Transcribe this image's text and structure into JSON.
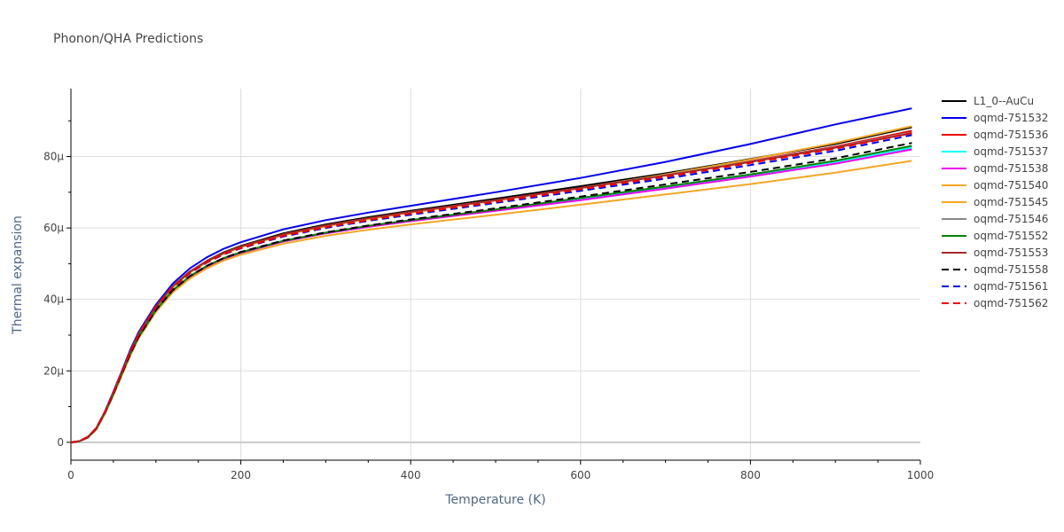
{
  "chart_data": {
    "type": "line",
    "title": "Phonon/QHA Predictions",
    "xlabel": "Temperature (K)",
    "ylabel": "Thermal expansion",
    "xlim": [
      0,
      1000
    ],
    "ylim": [
      -5e-06,
      9.9e-05
    ],
    "xticks": [
      0,
      200,
      400,
      600,
      800,
      1000
    ],
    "xtick_labels": [
      "0",
      "200",
      "400",
      "600",
      "800",
      "1000"
    ],
    "yticks": [
      0,
      2e-05,
      4e-05,
      6e-05,
      8e-05
    ],
    "ytick_labels": [
      "0",
      "20μ",
      "40μ",
      "60μ",
      "80μ"
    ],
    "grid": true,
    "legend_position": "right",
    "x": [
      0,
      10,
      20,
      30,
      40,
      50,
      60,
      70,
      80,
      100,
      120,
      140,
      160,
      180,
      200,
      250,
      300,
      350,
      400,
      500,
      600,
      700,
      800,
      900,
      990
    ],
    "series": [
      {
        "name": "L1_0--AuCu",
        "color": "#000000",
        "dash": "solid",
        "values": [
          0,
          3e-07,
          1.5e-06,
          4e-06,
          8.5e-06,
          1.4e-05,
          1.98e-05,
          2.55e-05,
          3.05e-05,
          3.8e-05,
          4.38e-05,
          4.78e-05,
          5.08e-05,
          5.32e-05,
          5.5e-05,
          5.85e-05,
          6.1e-05,
          6.3e-05,
          6.48e-05,
          6.82e-05,
          7.17e-05,
          7.53e-05,
          7.93e-05,
          8.35e-05,
          8.82e-05
        ]
      },
      {
        "name": "oqmd-751532",
        "color": "#0000ee",
        "dash": "solid",
        "values": [
          0,
          3e-07,
          1.5e-06,
          4e-06,
          8.6e-06,
          1.42e-05,
          2e-05,
          2.6e-05,
          3.1e-05,
          3.85e-05,
          4.45e-05,
          4.87e-05,
          5.18e-05,
          5.42e-05,
          5.6e-05,
          5.96e-05,
          6.22e-05,
          6.43e-05,
          6.62e-05,
          7e-05,
          7.4e-05,
          7.85e-05,
          8.35e-05,
          8.9e-05,
          9.35e-05
        ]
      },
      {
        "name": "oqmd-751536",
        "color": "#ee0000",
        "dash": "solid",
        "values": [
          0,
          3e-07,
          1.5e-06,
          4e-06,
          8.5e-06,
          1.4e-05,
          1.98e-05,
          2.55e-05,
          3.05e-05,
          3.8e-05,
          4.37e-05,
          4.77e-05,
          5.07e-05,
          5.3e-05,
          5.48e-05,
          5.82e-05,
          6.07e-05,
          6.27e-05,
          6.45e-05,
          6.78e-05,
          7.12e-05,
          7.48e-05,
          7.87e-05,
          8.28e-05,
          8.72e-05
        ]
      },
      {
        "name": "oqmd-751537",
        "color": "#00ffff",
        "dash": "solid",
        "values": [
          0,
          3e-07,
          1.4e-06,
          3.8e-06,
          8.2e-06,
          1.35e-05,
          1.92e-05,
          2.48e-05,
          2.96e-05,
          3.7e-05,
          4.25e-05,
          4.63e-05,
          4.92e-05,
          5.14e-05,
          5.3e-05,
          5.62e-05,
          5.85e-05,
          6.04e-05,
          6.2e-05,
          6.5e-05,
          6.82e-05,
          7.14e-05,
          7.48e-05,
          7.85e-05,
          8.25e-05
        ]
      },
      {
        "name": "oqmd-751538",
        "color": "#ee00ee",
        "dash": "solid",
        "values": [
          0,
          3e-07,
          1.4e-06,
          3.8e-06,
          8.2e-06,
          1.35e-05,
          1.92e-05,
          2.48e-05,
          2.96e-05,
          3.7e-05,
          4.25e-05,
          4.63e-05,
          4.92e-05,
          5.14e-05,
          5.3e-05,
          5.62e-05,
          5.85e-05,
          6.03e-05,
          6.19e-05,
          6.48e-05,
          6.78e-05,
          7.1e-05,
          7.44e-05,
          7.8e-05,
          8.2e-05
        ]
      },
      {
        "name": "oqmd-751540",
        "color": "#f5a623",
        "dash": "solid",
        "values": [
          0,
          3e-07,
          1.4e-06,
          3.8e-06,
          8.4e-06,
          1.38e-05,
          1.96e-05,
          2.53e-05,
          3.03e-05,
          3.78e-05,
          4.35e-05,
          4.75e-05,
          5.05e-05,
          5.28e-05,
          5.46e-05,
          5.8e-05,
          6.05e-05,
          6.25e-05,
          6.43e-05,
          6.77e-05,
          7.12e-05,
          7.5e-05,
          7.92e-05,
          8.38e-05,
          8.85e-05
        ]
      },
      {
        "name": "oqmd-751545",
        "color": "#f5a623",
        "dash": "solid",
        "values": [
          0,
          3e-07,
          1.3e-06,
          3.6e-06,
          8e-06,
          1.32e-05,
          1.88e-05,
          2.43e-05,
          2.92e-05,
          3.65e-05,
          4.2e-05,
          4.58e-05,
          4.87e-05,
          5.09e-05,
          5.25e-05,
          5.56e-05,
          5.78e-05,
          5.95e-05,
          6.1e-05,
          6.37e-05,
          6.65e-05,
          6.94e-05,
          7.23e-05,
          7.55e-05,
          7.88e-05
        ]
      },
      {
        "name": "oqmd-751546",
        "color": "#888888",
        "dash": "solid",
        "values": [
          0,
          3e-07,
          1.5e-06,
          4e-06,
          8.5e-06,
          1.4e-05,
          1.98e-05,
          2.55e-05,
          3.05e-05,
          3.8e-05,
          4.37e-05,
          4.77e-05,
          5.07e-05,
          5.3e-05,
          5.48e-05,
          5.82e-05,
          6.07e-05,
          6.27e-05,
          6.45e-05,
          6.78e-05,
          7.12e-05,
          7.48e-05,
          7.86e-05,
          8.26e-05,
          8.68e-05
        ]
      },
      {
        "name": "oqmd-751552",
        "color": "#008000",
        "dash": "solid",
        "values": [
          0,
          3e-07,
          1.4e-06,
          3.8e-06,
          8.2e-06,
          1.35e-05,
          1.92e-05,
          2.48e-05,
          2.96e-05,
          3.7e-05,
          4.26e-05,
          4.65e-05,
          4.94e-05,
          5.16e-05,
          5.32e-05,
          5.64e-05,
          5.87e-05,
          6.06e-05,
          6.22e-05,
          6.52e-05,
          6.84e-05,
          7.16e-05,
          7.5e-05,
          7.88e-05,
          8.3e-05
        ]
      },
      {
        "name": "oqmd-751553",
        "color": "#a52a2a",
        "dash": "solid",
        "values": [
          0,
          3e-07,
          1.5e-06,
          4e-06,
          8.5e-06,
          1.4e-05,
          1.98e-05,
          2.55e-05,
          3.05e-05,
          3.8e-05,
          4.37e-05,
          4.77e-05,
          5.07e-05,
          5.3e-05,
          5.48e-05,
          5.82e-05,
          6.07e-05,
          6.27e-05,
          6.45e-05,
          6.78e-05,
          7.12e-05,
          7.47e-05,
          7.85e-05,
          8.25e-05,
          8.65e-05
        ]
      },
      {
        "name": "oqmd-751558",
        "color": "#000000",
        "dash": "dash",
        "values": [
          0,
          3e-07,
          1.4e-06,
          3.8e-06,
          8.2e-06,
          1.35e-05,
          1.92e-05,
          2.48e-05,
          2.96e-05,
          3.7e-05,
          4.26e-05,
          4.65e-05,
          4.94e-05,
          5.16e-05,
          5.33e-05,
          5.65e-05,
          5.88e-05,
          6.07e-05,
          6.24e-05,
          6.55e-05,
          6.88e-05,
          7.22e-05,
          7.57e-05,
          7.95e-05,
          8.38e-05
        ]
      },
      {
        "name": "oqmd-751561",
        "color": "#0000ee",
        "dash": "dash",
        "values": [
          0,
          3e-07,
          1.5e-06,
          3.9e-06,
          8.4e-06,
          1.38e-05,
          1.96e-05,
          2.53e-05,
          3.02e-05,
          3.77e-05,
          4.33e-05,
          4.73e-05,
          5.03e-05,
          5.26e-05,
          5.43e-05,
          5.76e-05,
          6e-05,
          6.2e-05,
          6.37e-05,
          6.7e-05,
          7.04e-05,
          7.38e-05,
          7.76e-05,
          8.16e-05,
          8.6e-05
        ]
      },
      {
        "name": "oqmd-751562",
        "color": "#ee0000",
        "dash": "dash",
        "values": [
          0,
          3e-07,
          1.5e-06,
          3.9e-06,
          8.4e-06,
          1.38e-05,
          1.96e-05,
          2.53e-05,
          3.02e-05,
          3.78e-05,
          4.34e-05,
          4.74e-05,
          5.04e-05,
          5.27e-05,
          5.44e-05,
          5.78e-05,
          6.02e-05,
          6.22e-05,
          6.4e-05,
          6.73e-05,
          7.08e-05,
          7.43e-05,
          7.82e-05,
          8.22e-05,
          8.66e-05
        ]
      }
    ]
  }
}
